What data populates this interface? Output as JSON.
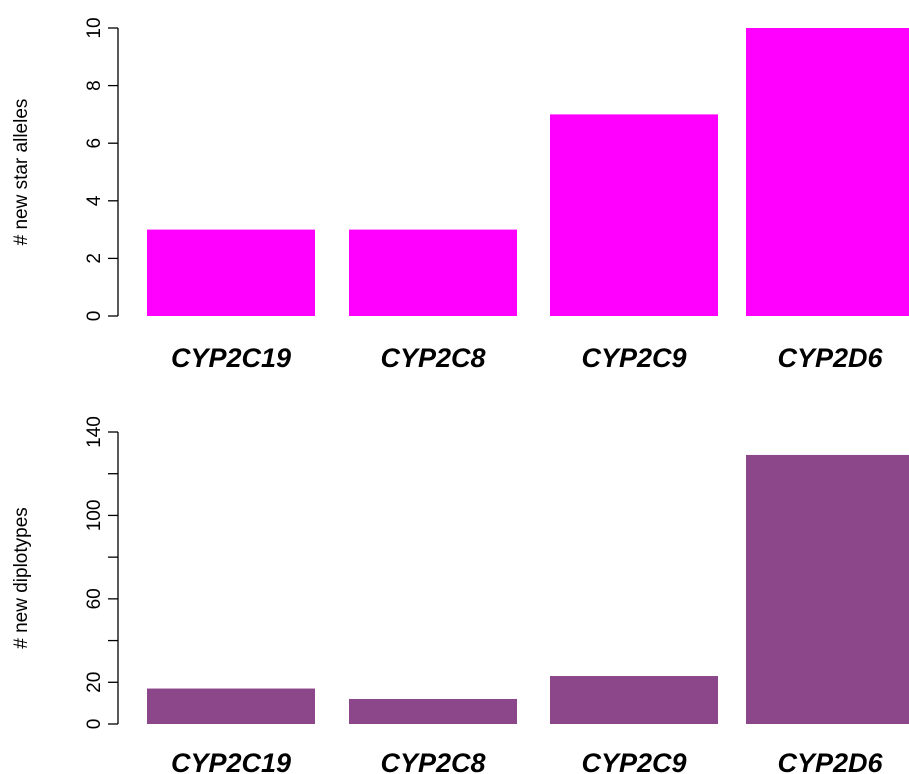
{
  "chart_data": [
    {
      "type": "bar",
      "categories": [
        "CYP2C19",
        "CYP2C8",
        "CYP2C9",
        "CYP2D6"
      ],
      "values": [
        3,
        3,
        7,
        10
      ],
      "ylabel": "# new star alleles",
      "xlabel": "",
      "ylim": [
        0,
        10
      ],
      "yticks": [
        0,
        2,
        4,
        6,
        8,
        10
      ],
      "color": "#ff00ff",
      "grid": false
    },
    {
      "type": "bar",
      "categories": [
        "CYP2C19",
        "CYP2C8",
        "CYP2C9",
        "CYP2D6"
      ],
      "values": [
        17,
        12,
        23,
        129
      ],
      "ylabel": "# new diplotypes",
      "xlabel": "",
      "ylim": [
        0,
        140
      ],
      "yticks": [
        0,
        20,
        40,
        60,
        80,
        100,
        120,
        140
      ],
      "ytick_labels": [
        "0",
        "20",
        "",
        "60",
        "",
        "100",
        "",
        "140"
      ],
      "color": "#8b4789",
      "grid": false
    }
  ]
}
